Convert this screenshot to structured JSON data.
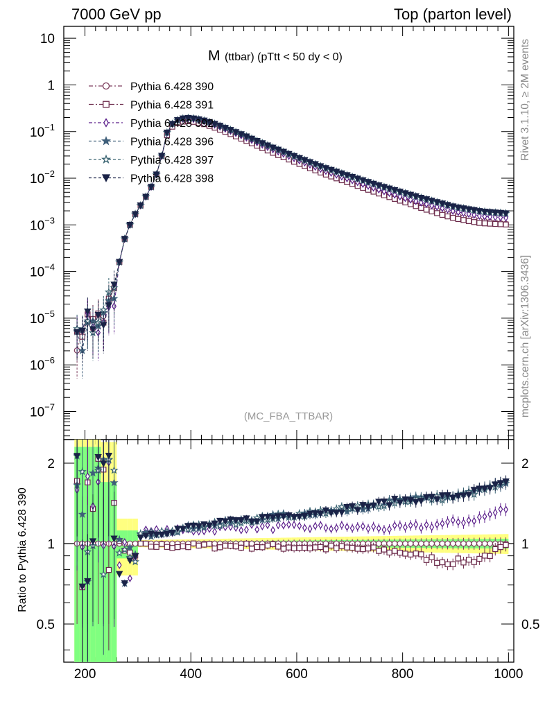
{
  "header": {
    "left": "7000 GeV pp",
    "right": "Top (parton level)"
  },
  "side_labels": {
    "rivet": "Rivet 3.1.10, ≥ 2M events",
    "mcplots": "mcplots.cern.ch [arXiv:1306.3436]"
  },
  "plot_title": {
    "main": "M",
    "sub": "(ttbar) (pTtt < 50 dy < 0)"
  },
  "watermark": "(MC_FBA_TTBAR)",
  "chart_data": [
    {
      "type": "line",
      "panel": "main",
      "y_scale": "log",
      "xlim": [
        160,
        1010
      ],
      "ylim": [
        2.5e-08,
        18
      ],
      "x_ticks": [
        "200",
        "400",
        "600",
        "800",
        "1000"
      ],
      "y_ticks": [
        {
          "value": 10,
          "base": "10",
          "exp": ""
        },
        {
          "value": 1,
          "base": "1",
          "exp": ""
        },
        {
          "value": 0.1,
          "base": "10",
          "exp": "−1"
        },
        {
          "value": 0.01,
          "base": "10",
          "exp": "−2"
        },
        {
          "value": 0.001,
          "base": "10",
          "exp": "−3"
        },
        {
          "value": 0.0001,
          "base": "10",
          "exp": "−4"
        },
        {
          "value": 1e-05,
          "base": "10",
          "exp": "−5"
        },
        {
          "value": 1e-06,
          "base": "10",
          "exp": "−6"
        },
        {
          "value": 1e-07,
          "base": "10",
          "exp": "−7"
        }
      ],
      "shape": {
        "peak_x": 395,
        "peak_y": 0.17,
        "points": [
          [
            185,
            3.4e-06
          ],
          [
            195,
            3.2e-06
          ],
          [
            205,
            8.5e-06
          ],
          [
            215,
            7e-06
          ],
          [
            225,
            8e-06
          ],
          [
            235,
            9e-06
          ],
          [
            245,
            2.5e-05
          ],
          [
            255,
            3e-05
          ],
          [
            265,
            0.00016
          ],
          [
            275,
            0.0005
          ],
          [
            285,
            0.001
          ],
          [
            295,
            0.0017
          ],
          [
            305,
            0.0026
          ],
          [
            315,
            0.004
          ],
          [
            325,
            0.0065
          ],
          [
            335,
            0.012
          ],
          [
            345,
            0.03
          ],
          [
            355,
            0.085
          ],
          [
            365,
            0.13
          ],
          [
            375,
            0.155
          ],
          [
            385,
            0.167
          ],
          [
            395,
            0.17
          ],
          [
            405,
            0.165
          ],
          [
            415,
            0.157
          ],
          [
            425,
            0.147
          ],
          [
            440,
            0.13
          ],
          [
            460,
            0.106
          ],
          [
            480,
            0.085
          ],
          [
            500,
            0.068
          ],
          [
            550,
            0.038
          ],
          [
            600,
            0.022
          ],
          [
            650,
            0.013
          ],
          [
            700,
            0.0082
          ],
          [
            750,
            0.0052
          ],
          [
            800,
            0.0034
          ],
          [
            850,
            0.0023
          ],
          [
            900,
            0.0016
          ],
          [
            950,
            0.00122
          ],
          [
            995,
            0.00105
          ]
        ]
      },
      "series": [
        {
          "name": "Pythia 6.428 390",
          "color": "#7f3f5f",
          "marker": "circle-open",
          "dash": "6,3,2,3",
          "high_mass_factor": 1.0
        },
        {
          "name": "Pythia 6.428 391",
          "color": "#6b2a4a",
          "marker": "square-open",
          "dash": "7,3,2,3",
          "high_mass_factor": 0.98
        },
        {
          "name": "Pythia 6.428 392",
          "color": "#5a1e8a",
          "marker": "diamond-open",
          "dash": "5,3,2,3",
          "high_mass_factor": 1.35
        },
        {
          "name": "Pythia 6.428 396",
          "color": "#3f5f7a",
          "marker": "star-filled",
          "dash": "4,3",
          "high_mass_factor": 1.65
        },
        {
          "name": "Pythia 6.428 397",
          "color": "#3a6472",
          "marker": "star-open",
          "dash": "4,3",
          "high_mass_factor": 1.65
        },
        {
          "name": "Pythia 6.428 398",
          "color": "#1a2347",
          "marker": "triangle-down-filled",
          "dash": "4,3",
          "high_mass_factor": 1.65
        }
      ]
    },
    {
      "type": "line",
      "panel": "ratio",
      "y_scale": "log",
      "ylabel": "Ratio to Pythia 6.428 390",
      "xlim": [
        160,
        1010
      ],
      "ylim": [
        0.36,
        2.45
      ],
      "y_ticks": [
        "0.5",
        "1",
        "2"
      ],
      "reference_value": 1,
      "ratio_shapes": {
        "Pythia 6.428 391": [
          [
            280,
            0.98
          ],
          [
            500,
            0.98
          ],
          [
            700,
            0.96
          ],
          [
            800,
            0.93
          ],
          [
            880,
            0.85
          ],
          [
            940,
            0.87
          ],
          [
            995,
            0.97
          ]
        ],
        "Pythia 6.428 392": [
          [
            280,
            1.1
          ],
          [
            400,
            1.12
          ],
          [
            500,
            1.15
          ],
          [
            700,
            1.15
          ],
          [
            800,
            1.14
          ],
          [
            900,
            1.2
          ],
          [
            950,
            1.25
          ],
          [
            995,
            1.35
          ]
        ],
        "Pythia 6.428 396": [
          [
            280,
            1.05
          ],
          [
            400,
            1.15
          ],
          [
            500,
            1.22
          ],
          [
            700,
            1.35
          ],
          [
            800,
            1.45
          ],
          [
            900,
            1.5
          ],
          [
            960,
            1.6
          ],
          [
            995,
            1.68
          ]
        ],
        "Pythia 6.428 397": [
          [
            280,
            1.05
          ],
          [
            400,
            1.15
          ],
          [
            500,
            1.22
          ],
          [
            700,
            1.35
          ],
          [
            800,
            1.45
          ],
          [
            900,
            1.5
          ],
          [
            960,
            1.6
          ],
          [
            995,
            1.68
          ]
        ],
        "Pythia 6.428 398": [
          [
            280,
            1.05
          ],
          [
            400,
            1.15
          ],
          [
            500,
            1.22
          ],
          [
            700,
            1.35
          ],
          [
            800,
            1.45
          ],
          [
            900,
            1.5
          ],
          [
            960,
            1.6
          ],
          [
            995,
            1.68
          ]
        ]
      },
      "uncertainty_bands": {
        "yellow_color": "#ffff80",
        "green_color": "#80ff80",
        "description": "reference statistical uncertainty (1σ green, 2σ yellow)"
      }
    }
  ]
}
